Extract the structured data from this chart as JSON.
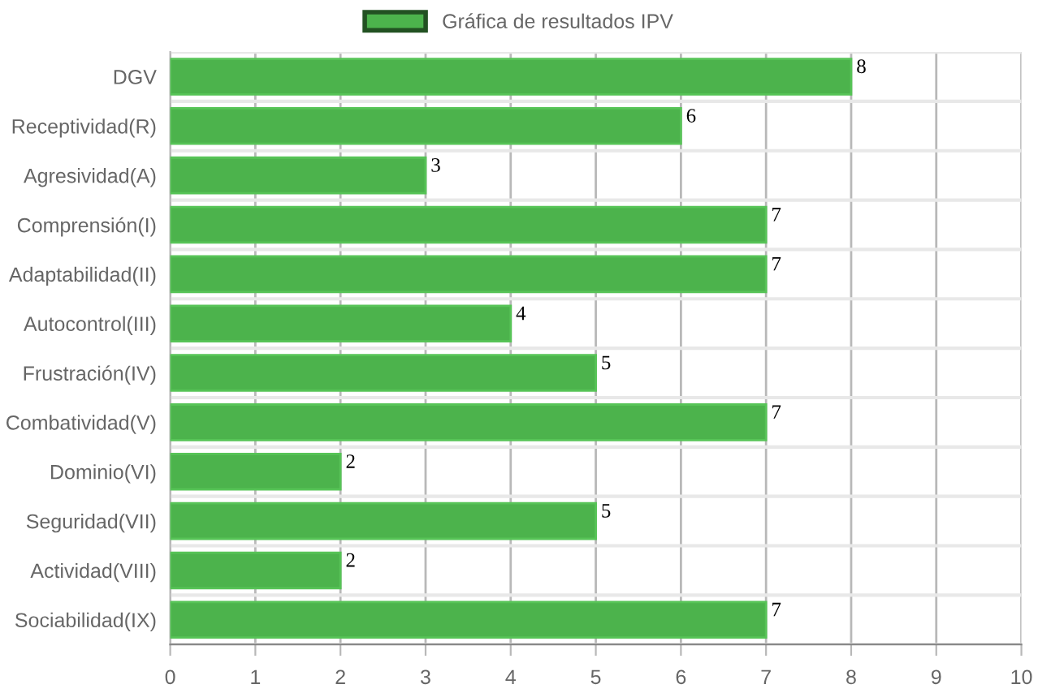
{
  "chart_data": {
    "type": "bar",
    "orientation": "horizontal",
    "categories": [
      "DGV",
      "Receptividad(R)",
      "Agresividad(A)",
      "Comprensión(I)",
      "Adaptabilidad(II)",
      "Autocontrol(III)",
      "Frustración(IV)",
      "Combatividad(V)",
      "Dominio(VI)",
      "Seguridad(VII)",
      "Actividad(VIII)",
      "Sociabilidad(IX)"
    ],
    "series": [
      {
        "name": "Gráfica de resultados IPV",
        "color": "#4cb34c",
        "values": [
          8,
          6,
          3,
          7,
          7,
          4,
          5,
          7,
          2,
          5,
          2,
          7
        ]
      }
    ],
    "xlim": [
      0,
      10
    ],
    "xticks": [
      0,
      1,
      2,
      3,
      4,
      5,
      6,
      7,
      8,
      9,
      10
    ],
    "grid": true,
    "legend": "top",
    "data_labels": true
  }
}
